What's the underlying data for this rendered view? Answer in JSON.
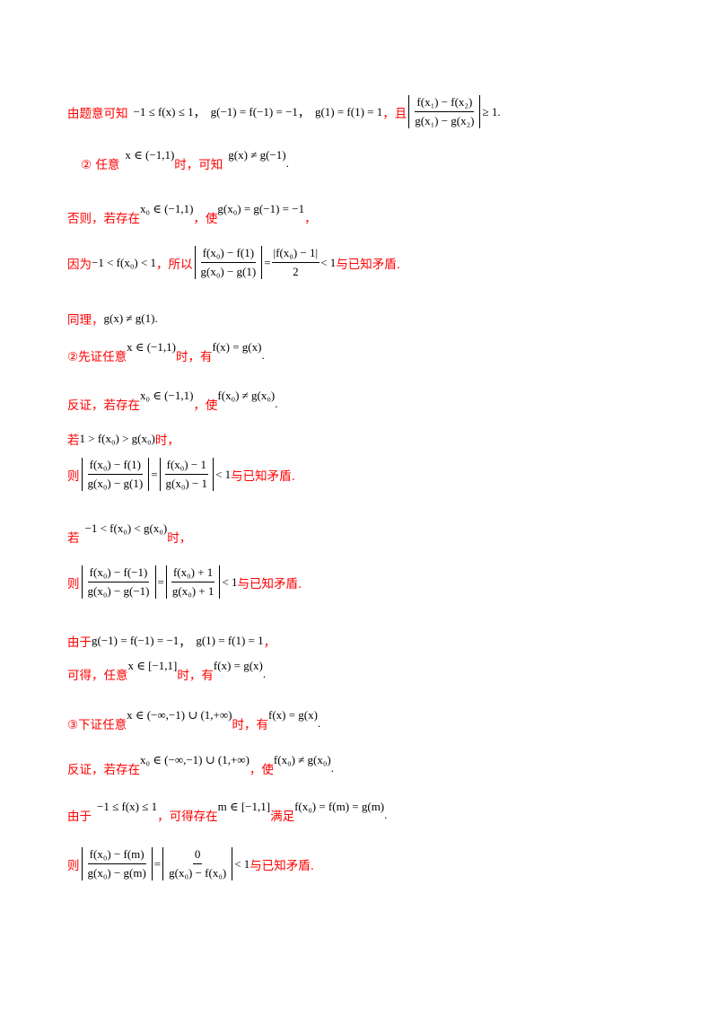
{
  "lines": [
    {
      "t1": "由题意可知",
      "m1": "−1 ≤ f(x) ≤ 1",
      "c1": "，",
      "m2": "g(−1) = f(−1) = −1",
      "c2": "，",
      "m3": "g(1) = f(1) = 1",
      "t2": "，且",
      "num": "f(x₁) − f(x₂)",
      "den": "g(x₁) − g(x₂)",
      "m4": "≥ 1",
      "end": "."
    },
    {
      "t1": "② 任意",
      "m1": "x ∈ (−1,1)",
      "t2": "时，可知",
      "m2": "g(x) ≠ g(−1)",
      "end": "."
    },
    {
      "t1": "否则，若存在",
      "m1": "x₀ ∈ (−1,1)",
      "t2": "，使",
      "m2": "g(x₀) = g(−1) = −1",
      "end": "，"
    },
    {
      "t1": "因为",
      "m1": "−1 < f(x₀) < 1",
      "t2": "，所以",
      "num": "f(x₀) − f(1)",
      "den": "g(x₀) − g(1)",
      "eq": "=",
      "num2": "|f(x₀) − 1|",
      "den2": "2",
      "m2": "< 1",
      "t3": "与已知矛盾."
    },
    {
      "t1": "同理，",
      "m1": "g(x) ≠ g(1)",
      "end": "."
    },
    {
      "t1": "②先证任意",
      "m1": "x ∈ (−1,1)",
      "t2": "时，有",
      "m2": "f(x) = g(x)",
      "end": "."
    },
    {
      "t1": "反证，若存在",
      "m1": "x₀ ∈ (−1,1)",
      "t2": "，使",
      "m2": "f(x₀) ≠ g(x₀)",
      "end": "."
    },
    {
      "t1": "若",
      "m1": "1 > f(x₀) > g(x₀)",
      "t2": "时，"
    },
    {
      "t1": "则",
      "num": "f(x₀) − f(1)",
      "den": "g(x₀) − g(1)",
      "eq": "=",
      "num2": "f(x₀) − 1",
      "den2": "g(x₀) − 1",
      "m1": "< 1",
      "t2": "与已知矛盾."
    },
    {
      "t1": "若",
      "m1": "−1 < f(x₀) < g(x₀)",
      "t2": "时，"
    },
    {
      "t1": "则",
      "num": "f(x₀) − f(−1)",
      "den": "g(x₀) − g(−1)",
      "eq": "=",
      "num2": "f(x₀) + 1",
      "den2": "g(x₀) + 1",
      "m1": "< 1",
      "t2": "与已知矛盾."
    },
    {
      "t1": "由于",
      "m1": "g(−1) = f(−1) = −1",
      "c1": "，",
      "m2": "g(1) = f(1) = 1",
      "end": "，"
    },
    {
      "t1": "可得，任意",
      "m1": "x ∈ [−1,1]",
      "t2": "时，有",
      "m2": "f(x) = g(x)",
      "end": "."
    },
    {
      "t1": "③下证任意",
      "m1": "x ∈ (−∞,−1) ∪ (1,+∞)",
      "t2": "时，有",
      "m2": "f(x) = g(x)",
      "end": "."
    },
    {
      "t1": "反证，若存在",
      "m1": "x₀ ∈ (−∞,−1) ∪ (1,+∞)",
      "t2": "，使",
      "m2": "f(x₀) ≠ g(x₀)",
      "end": "."
    },
    {
      "t1": "由于",
      "m1": "−1 ≤ f(x) ≤ 1",
      "t2": "，可得存在",
      "m2": "m ∈ [−1,1]",
      "t3": "满足",
      "m3": "f(x₀) = f(m) = g(m)",
      "end": "."
    },
    {
      "t1": "则",
      "num": "f(x₀) − f(m)",
      "den": "g(x₀) − g(m)",
      "eq": "=",
      "num2": "0",
      "den2": "g(x₀) − f(x₀)",
      "m1": "< 1",
      "t2": "与已知矛盾."
    }
  ]
}
